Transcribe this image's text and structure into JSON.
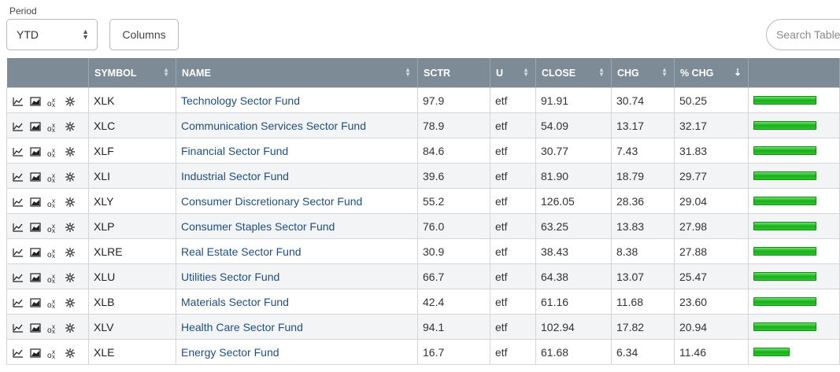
{
  "toolbar": {
    "period_label": "Period",
    "period_value": "YTD",
    "columns_label": "Columns",
    "search_placeholder": "Search Table"
  },
  "table": {
    "headers": [
      "SYMBOL",
      "NAME",
      "SCTR",
      "U",
      "CLOSE",
      "CHG",
      "% CHG"
    ],
    "sorted_column": "% CHG",
    "bar_color": "#22bb22",
    "rows": [
      {
        "symbol": "XLK",
        "name": "Technology Sector Fund",
        "sctr": "97.9",
        "u": "etf",
        "close": "91.91",
        "chg": "30.74",
        "pct_chg": "50.25",
        "bar_pct": 100
      },
      {
        "symbol": "XLC",
        "name": "Communication Services Sector Fund",
        "sctr": "78.9",
        "u": "etf",
        "close": "54.09",
        "chg": "13.17",
        "pct_chg": "32.17",
        "bar_pct": 100
      },
      {
        "symbol": "XLF",
        "name": "Financial Sector Fund",
        "sctr": "84.6",
        "u": "etf",
        "close": "30.77",
        "chg": "7.43",
        "pct_chg": "31.83",
        "bar_pct": 100
      },
      {
        "symbol": "XLI",
        "name": "Industrial Sector Fund",
        "sctr": "39.6",
        "u": "etf",
        "close": "81.90",
        "chg": "18.79",
        "pct_chg": "29.77",
        "bar_pct": 100
      },
      {
        "symbol": "XLY",
        "name": "Consumer Discretionary Sector Fund",
        "sctr": "55.2",
        "u": "etf",
        "close": "126.05",
        "chg": "28.36",
        "pct_chg": "29.04",
        "bar_pct": 100
      },
      {
        "symbol": "XLP",
        "name": "Consumer Staples Sector Fund",
        "sctr": "76.0",
        "u": "etf",
        "close": "63.25",
        "chg": "13.83",
        "pct_chg": "27.98",
        "bar_pct": 100
      },
      {
        "symbol": "XLRE",
        "name": "Real Estate Sector Fund",
        "sctr": "30.9",
        "u": "etf",
        "close": "38.43",
        "chg": "8.38",
        "pct_chg": "27.88",
        "bar_pct": 100
      },
      {
        "symbol": "XLU",
        "name": "Utilities Sector Fund",
        "sctr": "66.7",
        "u": "etf",
        "close": "64.38",
        "chg": "13.07",
        "pct_chg": "25.47",
        "bar_pct": 100
      },
      {
        "symbol": "XLB",
        "name": "Materials Sector Fund",
        "sctr": "42.4",
        "u": "etf",
        "close": "61.16",
        "chg": "11.68",
        "pct_chg": "23.60",
        "bar_pct": 100
      },
      {
        "symbol": "XLV",
        "name": "Health Care Sector Fund",
        "sctr": "94.1",
        "u": "etf",
        "close": "102.94",
        "chg": "17.82",
        "pct_chg": "20.94",
        "bar_pct": 100
      },
      {
        "symbol": "XLE",
        "name": "Energy Sector Fund",
        "sctr": "16.7",
        "u": "etf",
        "close": "61.68",
        "chg": "6.34",
        "pct_chg": "11.46",
        "bar_pct": 57
      }
    ]
  },
  "row_icons": [
    "line-chart-icon",
    "area-chart-icon",
    "pnf-chart-icon",
    "seasonality-icon"
  ]
}
